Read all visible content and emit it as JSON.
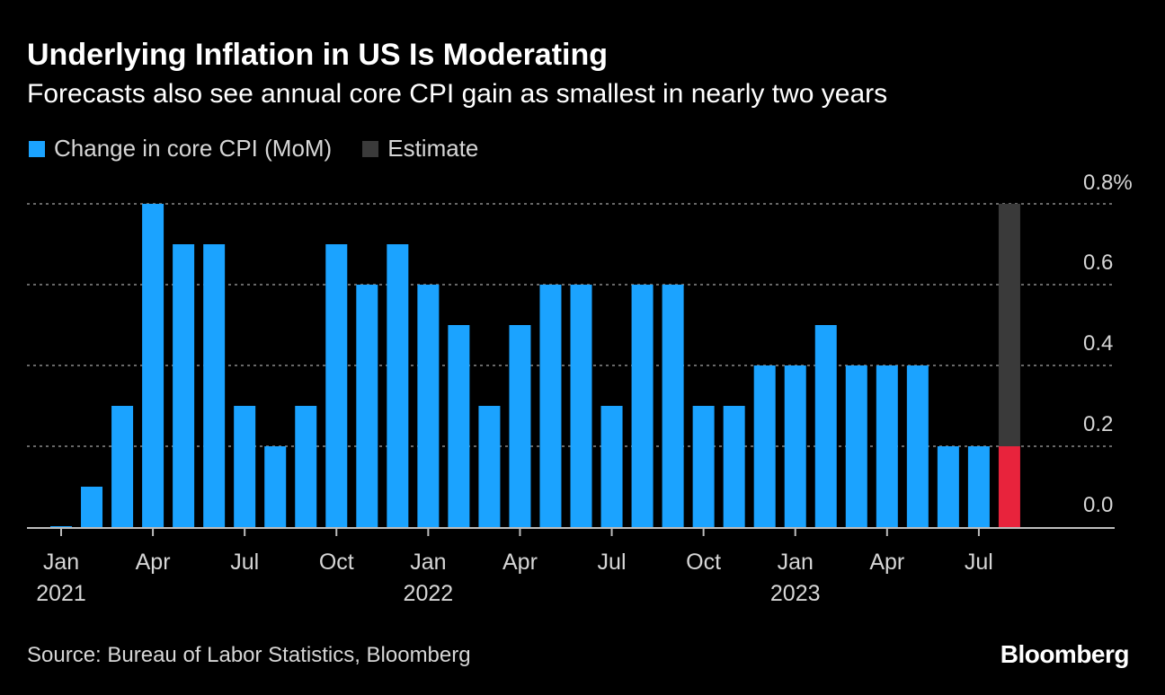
{
  "chart_data": {
    "type": "bar",
    "title": "Underlying Inflation in US Is Moderating",
    "subtitle": "Forecasts also see annual core CPI gain as smallest in nearly two years",
    "categories": [
      "Jan 2021",
      "Feb 2021",
      "Mar 2021",
      "Apr 2021",
      "May 2021",
      "Jun 2021",
      "Jul 2021",
      "Aug 2021",
      "Sep 2021",
      "Oct 2021",
      "Nov 2021",
      "Dec 2021",
      "Jan 2022",
      "Feb 2022",
      "Mar 2022",
      "Apr 2022",
      "May 2022",
      "Jun 2022",
      "Jul 2022",
      "Aug 2022",
      "Sep 2022",
      "Oct 2022",
      "Nov 2022",
      "Dec 2022",
      "Jan 2023",
      "Feb 2023",
      "Mar 2023",
      "Apr 2023",
      "May 2023",
      "Jun 2023",
      "Jul 2023",
      "Aug 2023"
    ],
    "series": [
      {
        "name": "Change in core CPI (MoM)",
        "color": "#1ba3ff",
        "values": [
          0.0,
          0.1,
          0.3,
          0.8,
          0.7,
          0.7,
          0.3,
          0.2,
          0.3,
          0.7,
          0.6,
          0.7,
          0.6,
          0.5,
          0.3,
          0.5,
          0.6,
          0.6,
          0.3,
          0.6,
          0.6,
          0.3,
          0.3,
          0.4,
          0.4,
          0.5,
          0.4,
          0.4,
          0.4,
          0.2,
          0.2,
          null
        ]
      }
    ],
    "estimate": {
      "name": "Estimate",
      "category": "Aug 2023",
      "range": [
        0.2,
        0.8
      ],
      "median": 0.2,
      "range_color": "#3a3a3a",
      "median_color": "#e8233c"
    },
    "ylim": [
      0,
      0.8
    ],
    "y_ticks": [
      {
        "value": 0.0,
        "label": "0.0"
      },
      {
        "value": 0.2,
        "label": "0.2"
      },
      {
        "value": 0.4,
        "label": "0.4"
      },
      {
        "value": 0.6,
        "label": "0.6"
      },
      {
        "value": 0.8,
        "label": "0.8%"
      }
    ],
    "x_ticks": [
      {
        "index": 0,
        "label": "Jan",
        "year": "2021"
      },
      {
        "index": 3,
        "label": "Apr",
        "year": ""
      },
      {
        "index": 6,
        "label": "Jul",
        "year": ""
      },
      {
        "index": 9,
        "label": "Oct",
        "year": ""
      },
      {
        "index": 12,
        "label": "Jan",
        "year": "2022"
      },
      {
        "index": 15,
        "label": "Apr",
        "year": ""
      },
      {
        "index": 18,
        "label": "Jul",
        "year": ""
      },
      {
        "index": 21,
        "label": "Oct",
        "year": ""
      },
      {
        "index": 24,
        "label": "Jan",
        "year": "2023"
      },
      {
        "index": 27,
        "label": "Apr",
        "year": ""
      },
      {
        "index": 30,
        "label": "Jul",
        "year": ""
      }
    ],
    "grid": true,
    "legend_position": "top-left",
    "yaxis_position": "right"
  },
  "legend": {
    "items": [
      {
        "label": "Change in core CPI (MoM)",
        "color": "#1ba3ff"
      },
      {
        "label": "Estimate",
        "color": "#3a3a3a"
      }
    ]
  },
  "footer": {
    "source": "Source: Bureau of Labor Statistics, Bloomberg",
    "logo": "Bloomberg"
  }
}
